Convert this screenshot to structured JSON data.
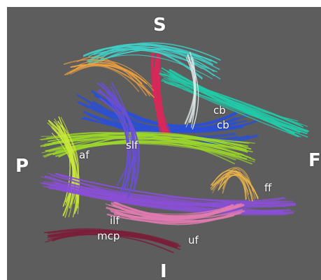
{
  "orientation": {
    "superior": "S",
    "posterior": "P",
    "frontal": "F",
    "inferior": "I"
  },
  "tracts": {
    "cb_upper": "cb",
    "cb_lower": "cb",
    "af": "af",
    "slf": "slf",
    "ff": "ff",
    "ilf": "ilf",
    "mcp": "mcp",
    "uf": "uf"
  },
  "colors": {
    "background": "#5d5d5d",
    "slf": "#9bd62a",
    "ilf": "#8a4fd6",
    "cb": "#22c9a8",
    "uf": "#e07bb0",
    "ff": "#e8b24a",
    "mcp": "#7a1f3a",
    "af": "#c8e83a",
    "core": "#2a4fd6",
    "cst": "#d8285a"
  }
}
